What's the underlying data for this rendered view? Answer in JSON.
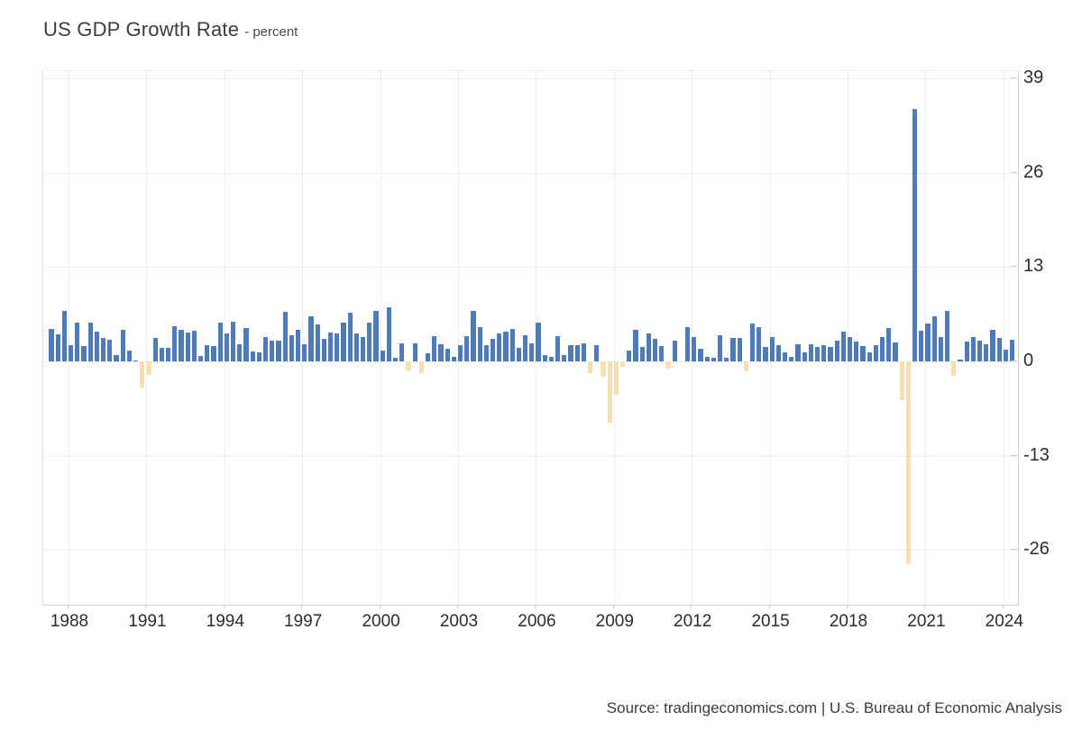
{
  "title": {
    "main": "US GDP Growth Rate",
    "subtitle": "- percent"
  },
  "source": "Source: tradingeconomics.com | U.S. Bureau of Economic Analysis",
  "colors": {
    "positive_bar": "#4e7cba",
    "negative_bar": "#f4e0b2",
    "gridline": "#e0e0e0",
    "axis_line": "#cfcfcf",
    "text": "#2d2d2d"
  },
  "axes": {
    "y_ticks": [
      39,
      26,
      13,
      0,
      -13,
      -26
    ],
    "x_ticks": [
      1988,
      1991,
      1994,
      1997,
      2000,
      2003,
      2006,
      2009,
      2012,
      2015,
      2018,
      2021,
      2024
    ],
    "y_visible_range": [
      -33,
      40
    ]
  },
  "chart_data": {
    "type": "bar",
    "title": "US GDP Growth Rate",
    "ylabel": "percent",
    "xlabel": "",
    "frequency": "quarterly",
    "start_quarter": "1987-Q2",
    "end_quarter": "2024-Q2",
    "grid": true,
    "legend": false,
    "years": [
      {
        "year": 1987,
        "values": [
          4.5,
          3.7,
          7.0
        ]
      },
      {
        "year": 1988,
        "values": [
          2.2,
          5.3,
          2.1,
          5.4
        ]
      },
      {
        "year": 1989,
        "values": [
          4.1,
          3.2,
          3.0,
          0.9
        ]
      },
      {
        "year": 1990,
        "values": [
          4.4,
          1.5,
          0.1,
          -3.6
        ]
      },
      {
        "year": 1991,
        "values": [
          -1.9,
          3.2,
          1.9,
          1.9
        ]
      },
      {
        "year": 1992,
        "values": [
          4.8,
          4.4,
          4.0,
          4.2
        ]
      },
      {
        "year": 1993,
        "values": [
          0.7,
          2.3,
          2.1,
          5.4
        ]
      },
      {
        "year": 1994,
        "values": [
          3.9,
          5.5,
          2.4,
          4.6
        ]
      },
      {
        "year": 1995,
        "values": [
          1.4,
          1.2,
          3.4,
          2.9
        ]
      },
      {
        "year": 1996,
        "values": [
          2.8,
          6.8,
          3.6,
          4.4
        ]
      },
      {
        "year": 1997,
        "values": [
          2.4,
          6.2,
          5.1,
          3.1
        ]
      },
      {
        "year": 1998,
        "values": [
          4.0,
          3.9,
          5.3,
          6.7
        ]
      },
      {
        "year": 1999,
        "values": [
          3.8,
          3.4,
          5.4,
          7.0
        ]
      },
      {
        "year": 2000,
        "values": [
          1.5,
          7.5,
          0.5,
          2.5
        ]
      },
      {
        "year": 2001,
        "values": [
          -1.3,
          2.5,
          -1.6,
          1.1
        ]
      },
      {
        "year": 2002,
        "values": [
          3.5,
          2.4,
          1.8,
          0.6
        ]
      },
      {
        "year": 2003,
        "values": [
          2.2,
          3.5,
          7.0,
          4.7
        ]
      },
      {
        "year": 2004,
        "values": [
          2.2,
          3.1,
          3.8,
          4.1
        ]
      },
      {
        "year": 2005,
        "values": [
          4.5,
          1.9,
          3.6,
          2.5
        ]
      },
      {
        "year": 2006,
        "values": [
          5.4,
          0.9,
          0.6,
          3.5
        ]
      },
      {
        "year": 2007,
        "values": [
          0.9,
          2.3,
          2.2,
          2.5
        ]
      },
      {
        "year": 2008,
        "values": [
          -1.6,
          2.3,
          -2.1,
          -8.5
        ]
      },
      {
        "year": 2009,
        "values": [
          -4.6,
          -0.7,
          1.5,
          4.3
        ]
      },
      {
        "year": 2010,
        "values": [
          2.0,
          3.9,
          3.1,
          2.1
        ]
      },
      {
        "year": 2011,
        "values": [
          -1.0,
          2.9,
          -0.1,
          4.7
        ]
      },
      {
        "year": 2012,
        "values": [
          3.3,
          1.8,
          0.6,
          0.5
        ]
      },
      {
        "year": 2013,
        "values": [
          3.6,
          0.5,
          3.2,
          3.2
        ]
      },
      {
        "year": 2014,
        "values": [
          -1.4,
          5.2,
          4.7,
          2.0
        ]
      },
      {
        "year": 2015,
        "values": [
          3.3,
          2.3,
          1.3,
          0.6
        ]
      },
      {
        "year": 2016,
        "values": [
          2.4,
          1.2,
          2.4,
          2.0
        ]
      },
      {
        "year": 2017,
        "values": [
          2.3,
          2.0,
          2.9,
          4.1
        ]
      },
      {
        "year": 2018,
        "values": [
          3.3,
          2.7,
          2.1,
          1.3
        ]
      },
      {
        "year": 2019,
        "values": [
          2.2,
          3.4,
          4.6,
          2.6
        ]
      },
      {
        "year": 2020,
        "values": [
          -5.3,
          -28.0,
          34.8,
          4.2
        ]
      },
      {
        "year": 2021,
        "values": [
          5.2,
          6.2,
          3.3,
          7.0
        ]
      },
      {
        "year": 2022,
        "values": [
          -2.0,
          0.3,
          2.7,
          3.4
        ]
      },
      {
        "year": 2023,
        "values": [
          2.8,
          2.4,
          4.4,
          3.2
        ]
      },
      {
        "year": 2024,
        "values": [
          1.6,
          3.0
        ]
      }
    ]
  }
}
